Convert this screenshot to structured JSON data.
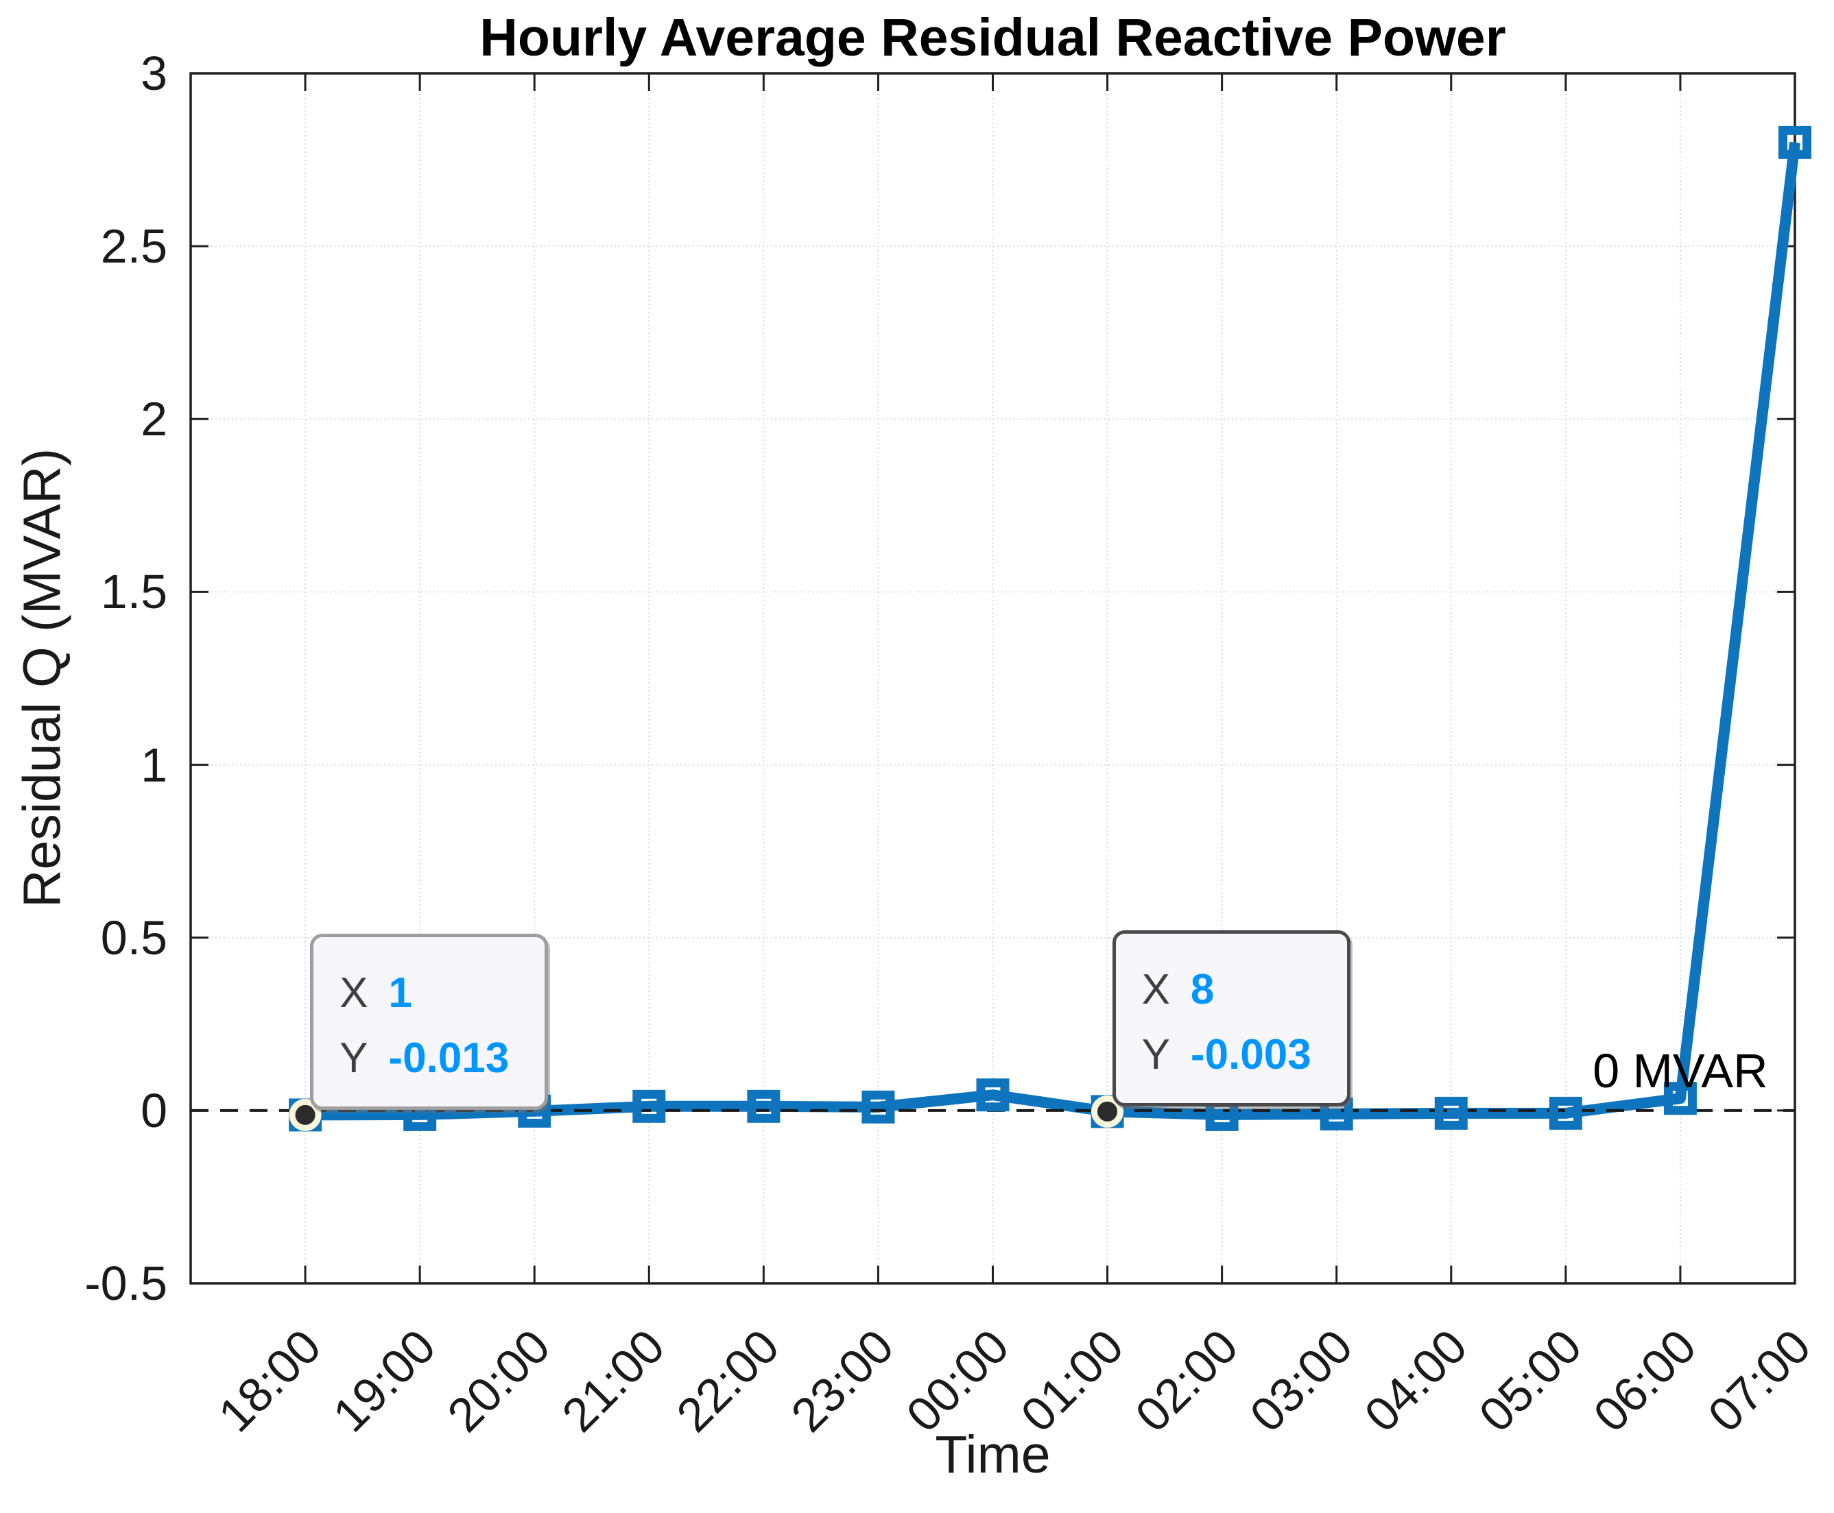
{
  "chart_data": {
    "type": "line",
    "title": "Hourly Average Residual Reactive Power",
    "xlabel": "Time",
    "ylabel": "Residual Q (MVAR)",
    "categories": [
      "18:00",
      "19:00",
      "20:00",
      "21:00",
      "22:00",
      "23:00",
      "00:00",
      "01:00",
      "02:00",
      "03:00",
      "04:00",
      "05:00",
      "06:00",
      "07:00"
    ],
    "series": [
      {
        "name": "Residual Q",
        "values": [
          -0.013,
          -0.012,
          -0.002,
          0.012,
          0.012,
          0.01,
          0.045,
          -0.003,
          -0.012,
          -0.01,
          -0.008,
          -0.008,
          0.035,
          2.8
        ]
      }
    ],
    "ylim": [
      -0.5,
      3
    ],
    "xlim_categories": [
      0,
      14
    ],
    "yticks": [
      -0.5,
      0,
      0.5,
      1,
      1.5,
      2,
      2.5,
      3
    ],
    "ytick_labels": [
      "-0.5",
      "0",
      "0.5",
      "1",
      "1.5",
      "2",
      "2.5",
      "3"
    ],
    "grid": true,
    "legend": "none",
    "line_color": "#0f74be",
    "marker": "hollow-square",
    "zero_line": {
      "value": 0,
      "style": "dashed",
      "color": "#1a1a1a",
      "annotation_point_index": 12
    }
  },
  "annotations": {
    "zero_label": "0 MVAR"
  },
  "datatips": [
    {
      "point_index": 0,
      "x_label": "X",
      "x_value": "1",
      "y_label": "Y",
      "y_value": "-0.013",
      "border_color": "#9e9e9e"
    },
    {
      "point_index": 7,
      "x_label": "X",
      "x_value": "8",
      "y_label": "Y",
      "y_value": "-0.003",
      "border_color": "#4a4a4a"
    }
  ],
  "colors": {
    "line_blue": "#0f74be",
    "datatip_value_blue": "#0095ff",
    "datatip_background": "#f7f7fb",
    "grid_gray": "#dbdbdb",
    "axis_black": "#1f1f1f",
    "anchor_ring": "#faf6dc"
  }
}
